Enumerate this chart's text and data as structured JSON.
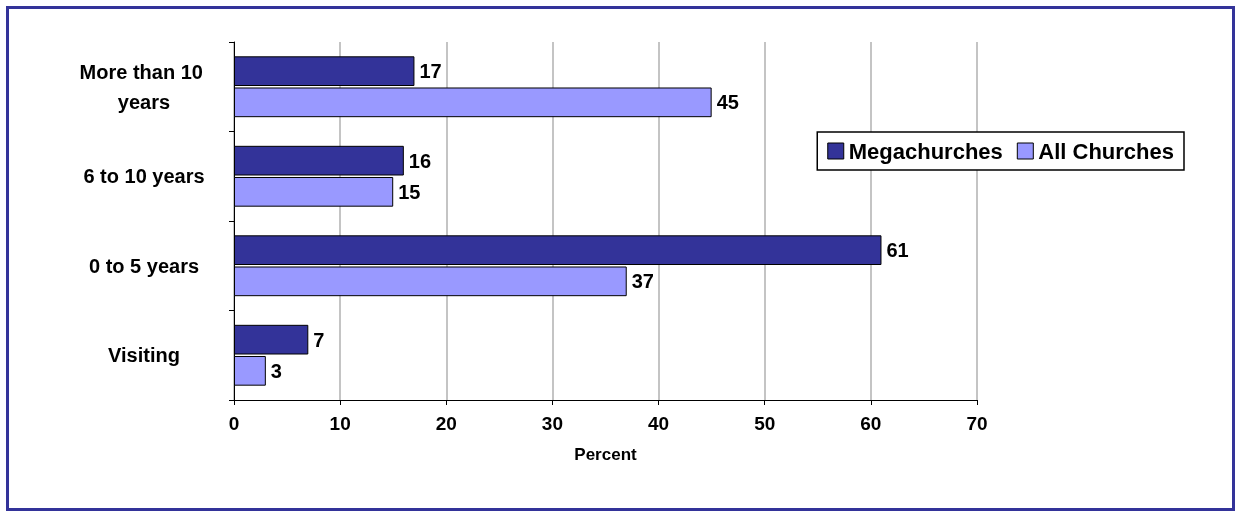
{
  "chart_data": {
    "type": "bar",
    "orientation": "horizontal",
    "categories": [
      "More than 10 years",
      "6 to 10 years",
      "0 to 5 years",
      "Visiting"
    ],
    "series": [
      {
        "name": "Megachurches",
        "color": "#333399",
        "values": [
          17,
          16,
          61,
          7
        ]
      },
      {
        "name": "All Churches",
        "color": "#9999ff",
        "values": [
          45,
          15,
          37,
          3
        ]
      }
    ],
    "xlabel": "Percent",
    "xlim": [
      0,
      70
    ],
    "xticks": [
      0,
      10,
      20,
      30,
      40,
      50,
      60,
      70
    ],
    "grid": "x",
    "legend": "right",
    "data_labels": true
  }
}
